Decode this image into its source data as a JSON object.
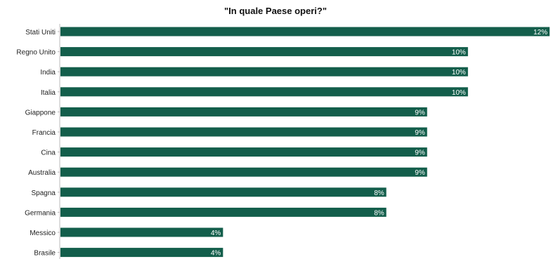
{
  "chart_data": {
    "type": "bar",
    "orientation": "horizontal",
    "title": "\"In quale Paese operi?\"",
    "xlabel": "",
    "ylabel": "",
    "categories": [
      "Stati Uniti",
      "Regno Unito",
      "India",
      "Italia",
      "Giappone",
      "Francia",
      "Cina",
      "Australia",
      "Spagna",
      "Germania",
      "Messico",
      "Brasile"
    ],
    "values": [
      12,
      10,
      10,
      10,
      9,
      9,
      9,
      9,
      8,
      8,
      4,
      4
    ],
    "value_labels": [
      "12%",
      "10%",
      "10%",
      "10%",
      "9%",
      "9%",
      "9%",
      "9%",
      "8%",
      "8%",
      "4%",
      "4%"
    ],
    "xlim": [
      0,
      12
    ],
    "grid": false,
    "legend": "none",
    "bar_color": "#135e4b",
    "label_color": "#ffffff"
  }
}
